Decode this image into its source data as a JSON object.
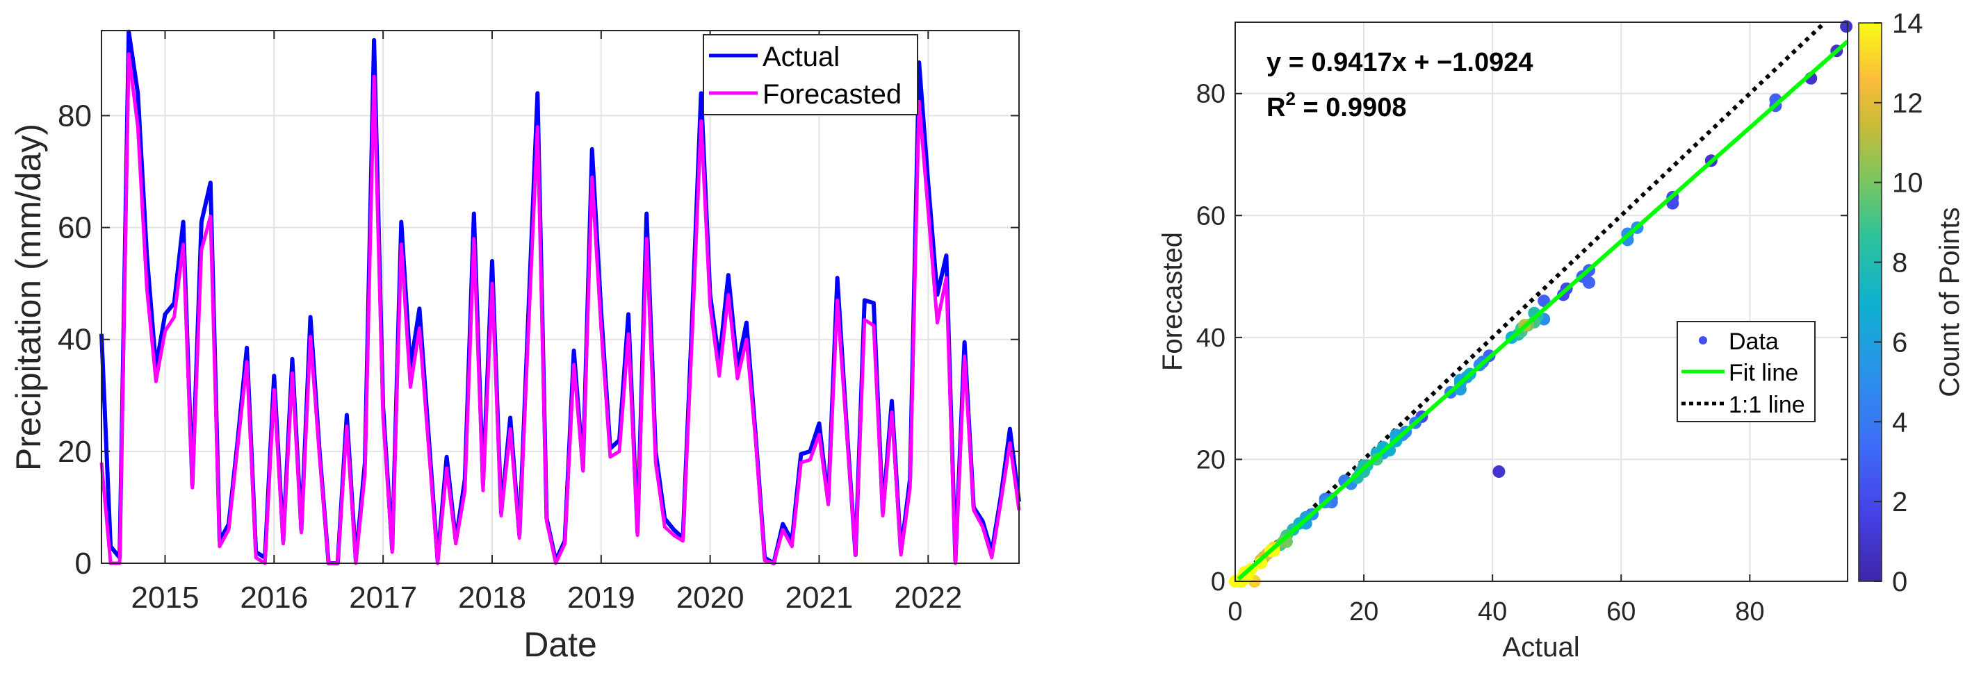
{
  "chart_data": [
    {
      "type": "line",
      "title": "",
      "xlabel": "Date",
      "ylabel": "Precipitation (mm/day)",
      "ylim": [
        0,
        95.2
      ],
      "yticks": [
        0,
        20,
        40,
        60,
        80
      ],
      "xticks": [
        "2015",
        "2016",
        "2017",
        "2018",
        "2019",
        "2020",
        "2021",
        "2022"
      ],
      "x_start": "2014-06",
      "x_end": "2022-11",
      "x_frequency": "monthly",
      "grid": true,
      "legend_position": "northeast",
      "x": [
        "2014-06",
        "2014-07",
        "2014-08",
        "2014-09",
        "2014-10",
        "2014-11",
        "2014-12",
        "2015-01",
        "2015-02",
        "2015-03",
        "2015-04",
        "2015-05",
        "2015-06",
        "2015-07",
        "2015-08",
        "2015-09",
        "2015-10",
        "2015-11",
        "2015-12",
        "2016-01",
        "2016-02",
        "2016-03",
        "2016-04",
        "2016-05",
        "2016-06",
        "2016-07",
        "2016-08",
        "2016-09",
        "2016-10",
        "2016-11",
        "2016-12",
        "2017-01",
        "2017-02",
        "2017-03",
        "2017-04",
        "2017-05",
        "2017-06",
        "2017-07",
        "2017-08",
        "2017-09",
        "2017-10",
        "2017-11",
        "2017-12",
        "2018-01",
        "2018-02",
        "2018-03",
        "2018-04",
        "2018-05",
        "2018-06",
        "2018-07",
        "2018-08",
        "2018-09",
        "2018-10",
        "2018-11",
        "2018-12",
        "2019-01",
        "2019-02",
        "2019-03",
        "2019-04",
        "2019-05",
        "2019-06",
        "2019-07",
        "2019-08",
        "2019-09",
        "2019-10",
        "2019-11",
        "2019-12",
        "2020-01",
        "2020-02",
        "2020-03",
        "2020-04",
        "2020-05",
        "2020-06",
        "2020-07",
        "2020-08",
        "2020-09",
        "2020-10",
        "2020-11",
        "2020-12",
        "2021-01",
        "2021-02",
        "2021-03",
        "2021-04",
        "2021-05",
        "2021-06",
        "2021-07",
        "2021-08",
        "2021-09",
        "2021-10",
        "2021-11",
        "2021-12",
        "2022-01",
        "2022-02",
        "2022-03",
        "2022-04",
        "2022-05",
        "2022-06",
        "2022-07",
        "2022-08",
        "2022-09",
        "2022-10",
        "2022-11"
      ],
      "series": [
        {
          "name": "Actual",
          "color": "#0000ff",
          "values": [
            41,
            3,
            1,
            95,
            84,
            55,
            35,
            44.5,
            46.5,
            61,
            14,
            61,
            68,
            4,
            7,
            22,
            38.5,
            2,
            1,
            33.5,
            4,
            36.5,
            6,
            44,
            20,
            0,
            0,
            26.5,
            0.5,
            18,
            93.5,
            28,
            2.5,
            61,
            35,
            45.5,
            23,
            0.5,
            19,
            4,
            15,
            62.5,
            14,
            54,
            9,
            26,
            5,
            45,
            84,
            8,
            0.5,
            4,
            38,
            17,
            74,
            45,
            20.5,
            22,
            44.5,
            5.5,
            62.5,
            20,
            8,
            6,
            4.5,
            43,
            84,
            48,
            36,
            51.5,
            35,
            43,
            23,
            1,
            0,
            7,
            4,
            19.5,
            20,
            25,
            11,
            51,
            25,
            1.5,
            47,
            46.5,
            9,
            29,
            2,
            15,
            89.5,
            68,
            48,
            55,
            0.5,
            39.5,
            10,
            7.5,
            2,
            12,
            24,
            11
          ]
        },
        {
          "name": "Forecasted",
          "color": "#ff00ff",
          "values": [
            18,
            0,
            0,
            91,
            78,
            49,
            32.5,
            41.5,
            44,
            57,
            13.5,
            56,
            62,
            3,
            6,
            21,
            36,
            1,
            0,
            31,
            3.5,
            34,
            5.5,
            40.5,
            19,
            0,
            0,
            24.5,
            0,
            16,
            87,
            26,
            2,
            57,
            31.5,
            42,
            21,
            0,
            17,
            3.5,
            13,
            58,
            13,
            50,
            8.5,
            24,
            4.5,
            42,
            78,
            7.5,
            0,
            3.5,
            35.5,
            16.5,
            69,
            42,
            19,
            20,
            41,
            5,
            58,
            18,
            6.5,
            5,
            4,
            40,
            79,
            46,
            33.5,
            48,
            33,
            40,
            22,
            0.5,
            0,
            6,
            3,
            18,
            18.5,
            23,
            10.5,
            47,
            24,
            1.5,
            43.5,
            42.5,
            8.5,
            27,
            1.5,
            13.5,
            82.5,
            63,
            43,
            51,
            0,
            37,
            9.5,
            6.5,
            1,
            11,
            21.5,
            9.5
          ]
        }
      ]
    },
    {
      "type": "scatter",
      "title": "",
      "xlabel": "Actual",
      "ylabel": "Forecasted",
      "xlim": [
        0,
        95.2
      ],
      "ylim": [
        0,
        91.7
      ],
      "xticks": [
        0,
        20,
        40,
        60,
        80
      ],
      "yticks": [
        0,
        20,
        40,
        60,
        80
      ],
      "grid": true,
      "annotation_equation": "y = 0.9417x + −1.0924",
      "annotation_r2_label": "R",
      "annotation_r2_sup": "2",
      "annotation_r2_value": " = 0.9908",
      "fit": {
        "slope": 0.9417,
        "intercept": -1.0924,
        "r2": 0.9908,
        "color": "#00ff00"
      },
      "one_to_one_color": "#000000",
      "points_source": "pairs of Actual vs Forecasted from the time series",
      "colorbar": {
        "label": "Count of Points",
        "min": 0,
        "max": 14,
        "ticks": [
          0,
          2,
          4,
          6,
          8,
          10,
          12,
          14
        ],
        "colormap": "parula"
      },
      "legend": [
        {
          "label": "Data",
          "marker": "dot",
          "color": "#4650f0"
        },
        {
          "label": "Fit line",
          "marker": "line",
          "color": "#00ff00"
        },
        {
          "label": "1:1 line",
          "marker": "dotted",
          "color": "#000000"
        }
      ],
      "legend_position": "east"
    }
  ],
  "left": {
    "legend": {
      "actual": "Actual",
      "forecasted": "Forecasted"
    },
    "xlabel": "Date",
    "ylabel": "Precipitation (mm/day)"
  },
  "right": {
    "xlabel": "Actual",
    "ylabel": "Forecasted",
    "colorbar_label": "Count of Points",
    "legend": {
      "data": "Data",
      "fit": "Fit line",
      "one": "1:1 line"
    },
    "eq": "y = 0.9417x + −1.0924",
    "r2_prefix": "R",
    "r2_sup": "2",
    "r2_value": " = 0.9908"
  }
}
